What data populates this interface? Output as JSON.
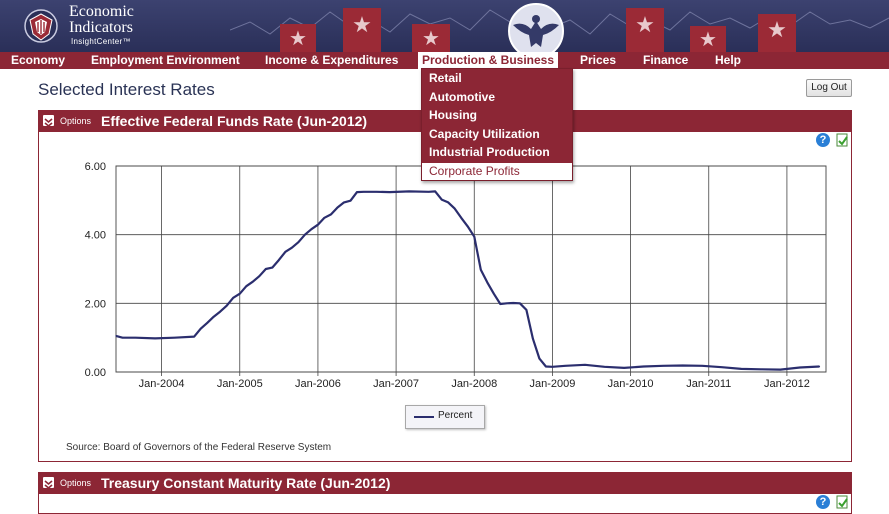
{
  "app": {
    "logo_line1": "Economic",
    "logo_line2": "Indicators",
    "logo_line3": "InsightCenter™"
  },
  "nav": {
    "items": [
      {
        "label": "Economy"
      },
      {
        "label": "Employment Environment"
      },
      {
        "label": "Income & Expenditures"
      },
      {
        "label": "Production & Business"
      },
      {
        "label": "Prices"
      },
      {
        "label": "Finance"
      },
      {
        "label": "Help"
      }
    ],
    "active_index": 3
  },
  "dropdown": {
    "items": [
      "Retail",
      "Automotive",
      "Housing",
      "Capacity Utilization",
      "Industrial Production",
      "Corporate Profits"
    ]
  },
  "page": {
    "title": "Selected Interest Rates",
    "logout_label": "Log Out"
  },
  "panels": [
    {
      "options_label": "Options",
      "title": "Effective Federal Funds Rate (Jun-2012)",
      "source": "Source: Board of Governors of the Federal Reserve System",
      "legend": "Percent"
    },
    {
      "options_label": "Options",
      "title": "Treasury Constant Maturity Rate (Jun-2012)"
    }
  ],
  "icons": {
    "help": "?",
    "help_color": "#2a7fd6",
    "brand_color": "#8c2635",
    "header_color": "#2f3462"
  },
  "chart_data": {
    "type": "line",
    "title": "Effective Federal Funds Rate (Jun-2012)",
    "xlabel": "",
    "ylabel": "",
    "ylim": [
      0,
      6
    ],
    "yticks": [
      "0.00",
      "2.00",
      "4.00",
      "6.00"
    ],
    "xticks": [
      "Jan-2004",
      "Jan-2005",
      "Jan-2006",
      "Jan-2007",
      "Jan-2008",
      "Jan-2009",
      "Jan-2010",
      "Jan-2011",
      "Jan-2012"
    ],
    "grid": true,
    "legend_position": "bottom-center",
    "series": [
      {
        "name": "Percent",
        "color": "#2b2e6e",
        "points": [
          [
            "2003-06",
            1.05
          ],
          [
            "2003-07",
            1.0
          ],
          [
            "2003-09",
            1.0
          ],
          [
            "2003-12",
            0.98
          ],
          [
            "2004-03",
            1.0
          ],
          [
            "2004-06",
            1.03
          ],
          [
            "2004-07",
            1.26
          ],
          [
            "2004-08",
            1.43
          ],
          [
            "2004-09",
            1.61
          ],
          [
            "2004-10",
            1.76
          ],
          [
            "2004-11",
            1.93
          ],
          [
            "2004-12",
            2.16
          ],
          [
            "2005-01",
            2.28
          ],
          [
            "2005-02",
            2.5
          ],
          [
            "2005-03",
            2.63
          ],
          [
            "2005-04",
            2.79
          ],
          [
            "2005-05",
            3.0
          ],
          [
            "2005-06",
            3.04
          ],
          [
            "2005-07",
            3.26
          ],
          [
            "2005-08",
            3.5
          ],
          [
            "2005-09",
            3.62
          ],
          [
            "2005-10",
            3.78
          ],
          [
            "2005-11",
            4.0
          ],
          [
            "2005-12",
            4.16
          ],
          [
            "2006-01",
            4.29
          ],
          [
            "2006-02",
            4.49
          ],
          [
            "2006-03",
            4.59
          ],
          [
            "2006-04",
            4.79
          ],
          [
            "2006-05",
            4.94
          ],
          [
            "2006-06",
            4.99
          ],
          [
            "2006-07",
            5.24
          ],
          [
            "2006-08",
            5.25
          ],
          [
            "2006-10",
            5.25
          ],
          [
            "2006-12",
            5.24
          ],
          [
            "2007-03",
            5.26
          ],
          [
            "2007-06",
            5.25
          ],
          [
            "2007-07",
            5.26
          ],
          [
            "2007-08",
            5.02
          ],
          [
            "2007-09",
            4.94
          ],
          [
            "2007-10",
            4.76
          ],
          [
            "2007-11",
            4.49
          ],
          [
            "2007-12",
            4.24
          ],
          [
            "2008-01",
            3.94
          ],
          [
            "2008-02",
            2.98
          ],
          [
            "2008-03",
            2.61
          ],
          [
            "2008-04",
            2.28
          ],
          [
            "2008-05",
            1.98
          ],
          [
            "2008-06",
            2.0
          ],
          [
            "2008-07",
            2.01
          ],
          [
            "2008-08",
            2.0
          ],
          [
            "2008-09",
            1.81
          ],
          [
            "2008-10",
            0.97
          ],
          [
            "2008-11",
            0.39
          ],
          [
            "2008-12",
            0.16
          ],
          [
            "2009-01",
            0.15
          ],
          [
            "2009-03",
            0.18
          ],
          [
            "2009-06",
            0.21
          ],
          [
            "2009-09",
            0.15
          ],
          [
            "2009-12",
            0.12
          ],
          [
            "2010-03",
            0.16
          ],
          [
            "2010-06",
            0.18
          ],
          [
            "2010-09",
            0.19
          ],
          [
            "2010-12",
            0.18
          ],
          [
            "2011-03",
            0.14
          ],
          [
            "2011-06",
            0.09
          ],
          [
            "2011-09",
            0.08
          ],
          [
            "2011-12",
            0.07
          ],
          [
            "2012-03",
            0.13
          ],
          [
            "2012-06",
            0.16
          ]
        ]
      }
    ]
  }
}
